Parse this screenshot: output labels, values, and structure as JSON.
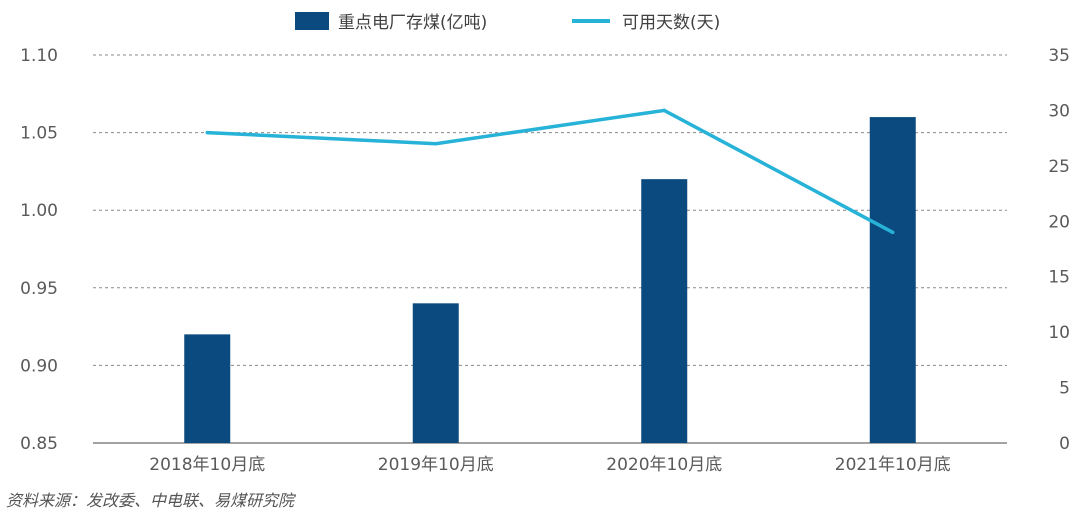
{
  "chart_data": {
    "type": "bar",
    "categories": [
      "2018年10月底",
      "2019年10月底",
      "2020年10月底",
      "2021年10月底"
    ],
    "series": [
      {
        "name": "重点电厂存煤(亿吨)",
        "type": "bar",
        "axis": "left",
        "values": [
          0.92,
          0.94,
          1.02,
          1.06
        ],
        "color": "#0b4a7e"
      },
      {
        "name": "可用天数(天)",
        "type": "line",
        "axis": "right",
        "values": [
          28,
          27,
          30,
          19
        ],
        "color": "#27b2d8"
      }
    ],
    "y_left": {
      "ylim": [
        0.85,
        1.1
      ],
      "ticks": [
        "0.85",
        "0.90",
        "0.95",
        "1.00",
        "1.05",
        "1.10"
      ]
    },
    "y_right": {
      "ylim": [
        0,
        35
      ],
      "ticks": [
        "0",
        "5",
        "10",
        "15",
        "20",
        "25",
        "30",
        "35"
      ]
    },
    "grid": "dashed horizontal",
    "legend": "top-center"
  },
  "source_note": "资料来源：发改委、中电联、易煤研究院",
  "colors": {
    "bar": "#0b4a7e",
    "line": "#27b2d8",
    "grid": "#8a8a8a",
    "axis": "#6a6a6a",
    "text": "#5a5a5a"
  }
}
